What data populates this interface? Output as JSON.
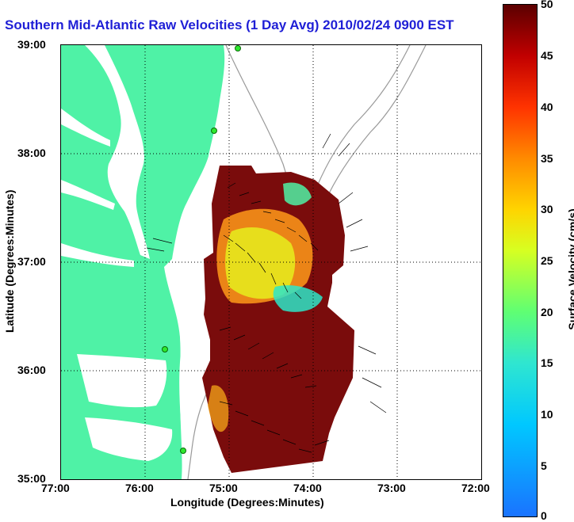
{
  "title": "Southern Mid-Atlantic Raw Velocities (1 Day Avg) 2010/02/24 0900 EST",
  "x_axis": {
    "label": "Longitude (Degrees:Minutes)",
    "ticks": [
      "77:00",
      "76:00",
      "75:00",
      "74:00",
      "73:00",
      "72:00"
    ]
  },
  "y_axis": {
    "label": "Latitude (Degrees:Minutes)",
    "ticks": [
      "39:00",
      "38:00",
      "37:00",
      "36:00",
      "35:00"
    ]
  },
  "colorbar": {
    "label": "Surface Velocity (cm/s)",
    "ticks": [
      "50",
      "45",
      "40",
      "35",
      "30",
      "25",
      "20",
      "15",
      "10",
      "5",
      "0"
    ],
    "min": 0,
    "max": 50
  },
  "extent": {
    "lon": [
      -77,
      -72
    ],
    "lat": [
      35,
      39
    ]
  },
  "colors": {
    "land": "#4ff2a6",
    "title": "#1f1fd6",
    "station": "#2ee82e"
  }
}
